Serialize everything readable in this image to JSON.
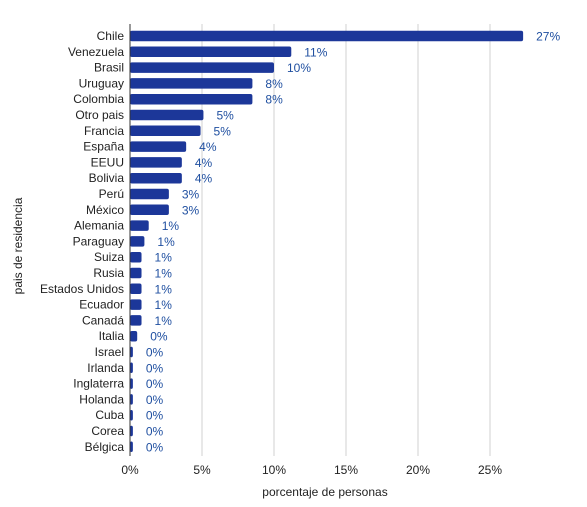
{
  "chart_data": {
    "type": "bar",
    "orientation": "horizontal",
    "categories": [
      "Chile",
      "Venezuela",
      "Brasil",
      "Uruguay",
      "Colombia",
      "Otro pais",
      "Francia",
      "España",
      "EEUU",
      "Bolivia",
      "Perú",
      "México",
      "Alemania",
      "Paraguay",
      "Suiza",
      "Rusia",
      "Estados Unidos",
      "Ecuador",
      "Canadá",
      "Italia",
      "Israel",
      "Irlanda",
      "Inglaterra",
      "Holanda",
      "Cuba",
      "Corea",
      "Bélgica"
    ],
    "values": [
      27.3,
      11.2,
      10.0,
      8.5,
      8.5,
      5.1,
      4.9,
      3.9,
      3.6,
      3.6,
      2.7,
      2.7,
      1.3,
      1.0,
      0.8,
      0.8,
      0.8,
      0.8,
      0.8,
      0.5,
      0.2,
      0.2,
      0.2,
      0.2,
      0.2,
      0.2,
      0.2
    ],
    "value_labels": [
      "27%",
      "11%",
      "10%",
      "8%",
      "8%",
      "5%",
      "5%",
      "4%",
      "4%",
      "4%",
      "3%",
      "3%",
      "1%",
      "1%",
      "1%",
      "1%",
      "1%",
      "1%",
      "1%",
      "0%",
      "0%",
      "0%",
      "0%",
      "0%",
      "0%",
      "0%",
      "0%"
    ],
    "xlabel": "porcentaje de personas",
    "ylabel": "pais de residencia",
    "xlim": [
      0,
      30
    ],
    "xticks": [
      0,
      5,
      10,
      15,
      20,
      25
    ],
    "xtick_labels": [
      "0%",
      "5%",
      "10%",
      "15%",
      "20%",
      "25%"
    ],
    "grid": "vertical",
    "bar_color": "#1c3799",
    "label_color": "#1f4fa0"
  }
}
